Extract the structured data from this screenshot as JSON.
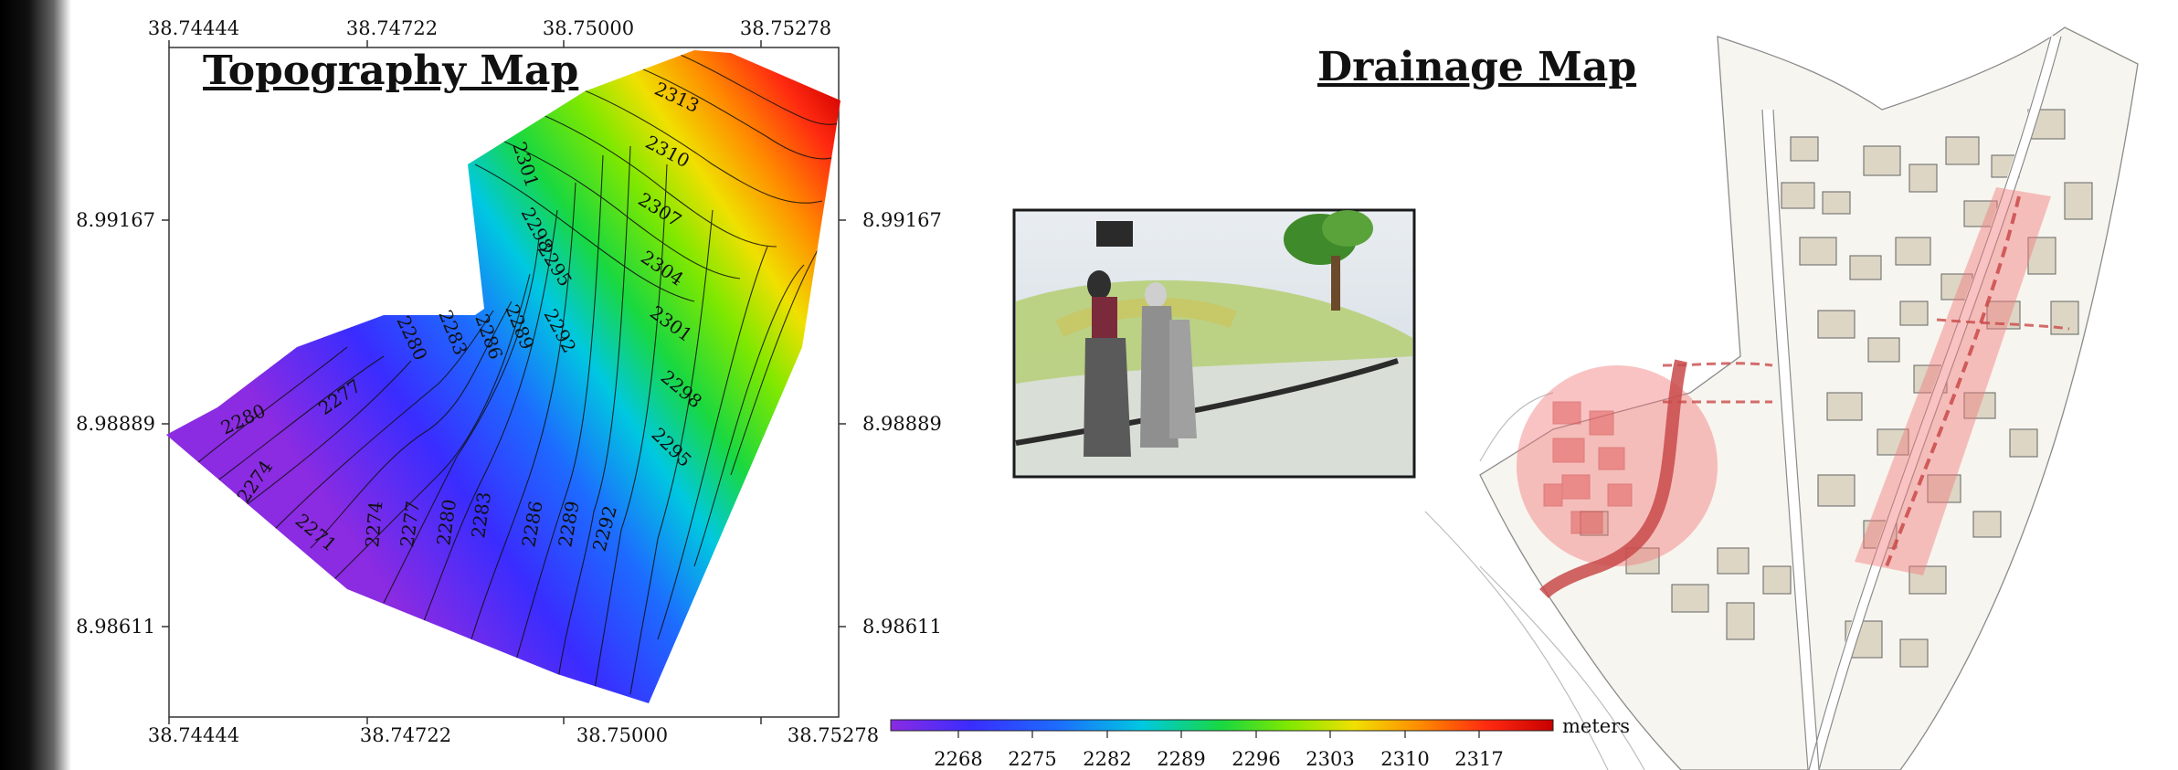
{
  "topography": {
    "title": "Topography Map",
    "x_ticks": [
      "38.74444",
      "38.74722",
      "38.75000",
      "38.75278"
    ],
    "y_ticks": [
      "8.99167",
      "8.98889",
      "8.98611"
    ],
    "contour_labels": [
      "2313",
      "2310",
      "2307",
      "2304",
      "2301",
      "2298",
      "2295",
      "2292",
      "2289",
      "2286",
      "2283",
      "2280",
      "2277",
      "2274",
      "2271",
      "2301",
      "2298",
      "2295",
      "2292",
      "2289",
      "2286",
      "2283",
      "2280",
      "2277",
      "2274",
      "2280"
    ]
  },
  "drainage": {
    "title": "Drainage Map"
  },
  "legend": {
    "unit": "meters",
    "values": [
      "2268",
      "2275",
      "2282",
      "2289",
      "2296",
      "2303",
      "2310",
      "2317"
    ],
    "colors": [
      "#8b2be2",
      "#3a2cff",
      "#1d6bff",
      "#00c8e0",
      "#19d840",
      "#7fe800",
      "#f0e000",
      "#ff8a00",
      "#ff2a10",
      "#c80000"
    ]
  }
}
